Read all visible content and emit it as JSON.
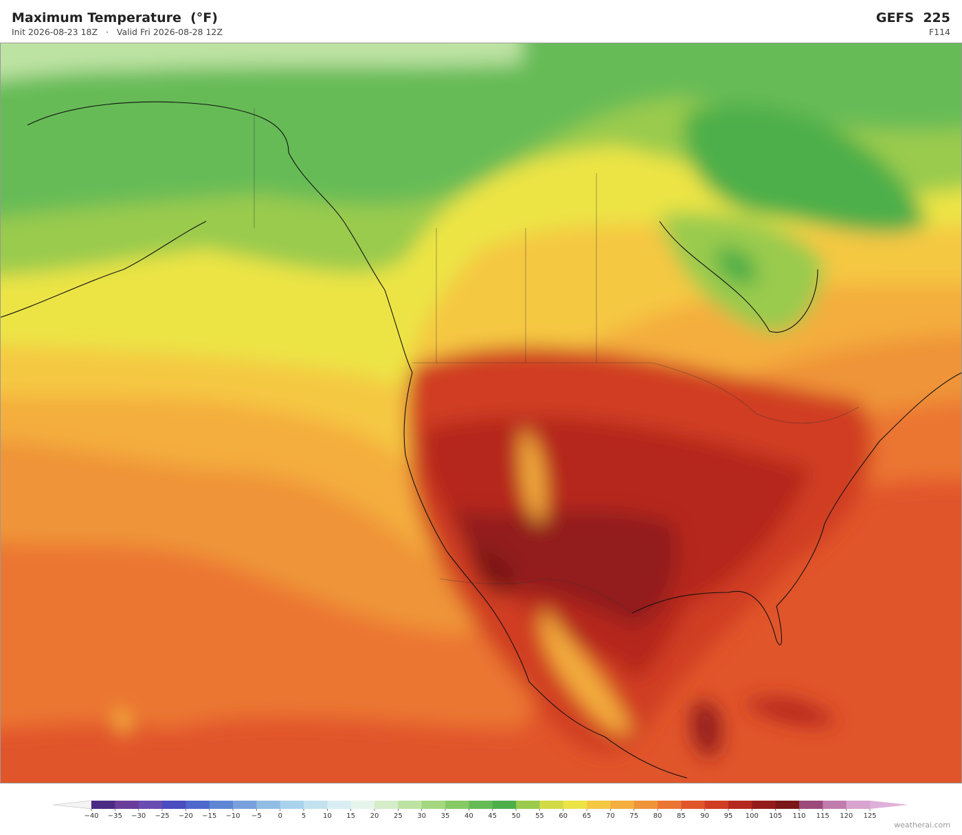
{
  "header": {
    "title": "Maximum Temperature  (°F)",
    "init": "Init 2026-08-23 18Z",
    "separator": "·",
    "valid": "Valid Fri 2026-08-28 12Z",
    "model": "GEFS  225",
    "forecast_hour": "F114"
  },
  "colorbar": {
    "ticks": [
      {
        "value": -40,
        "label": "−40"
      },
      {
        "value": -35,
        "label": "−35"
      },
      {
        "value": -30,
        "label": "−30"
      },
      {
        "value": -25,
        "label": "−25"
      },
      {
        "value": -20,
        "label": "−20"
      },
      {
        "value": -15,
        "label": "−15"
      },
      {
        "value": -10,
        "label": "−10"
      },
      {
        "value": -5,
        "label": "−5"
      },
      0,
      5,
      10,
      15,
      20,
      25,
      30,
      35,
      40,
      45,
      50,
      55,
      60,
      65,
      70,
      75,
      80,
      85,
      90,
      95,
      100,
      105,
      110,
      115,
      120,
      125
    ],
    "colors": [
      "#4b2a84",
      "#6a3d9a",
      "#6a4db0",
      "#4a4cc0",
      "#4f68cc",
      "#5f86d4",
      "#7aa0dc",
      "#92bde3",
      "#a9d2ec",
      "#c3e2ef",
      "#d9eef2",
      "#e6f4ec",
      "#d5ecc8",
      "#bde3a3",
      "#a3d780",
      "#86ca66",
      "#66bb56",
      "#4daf4a",
      "#9acb4d",
      "#d2da46",
      "#ece445",
      "#f5c842",
      "#f4ae3e",
      "#ef9438",
      "#eb7633",
      "#e1552b",
      "#d03c24",
      "#b5281f",
      "#931b1c",
      "#7a1618",
      "#9b4a7a",
      "#c07cad",
      "#d9a3cf"
    ],
    "under_color": "#f4f4f4",
    "over_color": "#dfb0da"
  },
  "watermark": "weatherai.com"
}
